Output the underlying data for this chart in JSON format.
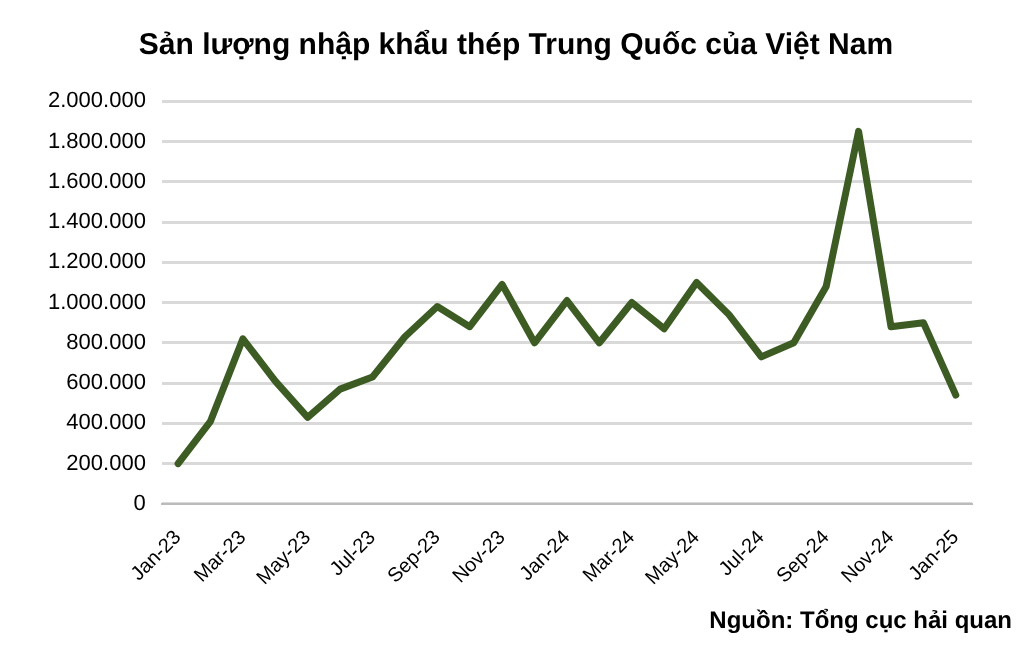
{
  "chart_data": {
    "type": "line",
    "title": "Sản lượng nhập khẩu thép Trung Quốc của Việt Nam",
    "categories": [
      "Jan-23",
      null,
      "Mar-23",
      null,
      "May-23",
      null,
      "Jul-23",
      null,
      "Sep-23",
      null,
      "Nov-23",
      null,
      "Jan-24",
      null,
      "Mar-24",
      null,
      "May-24",
      null,
      "Jul-24",
      null,
      "Sep-24",
      null,
      "Nov-24",
      null,
      "Jan-25"
    ],
    "series": [
      {
        "color": "#3d5c24",
        "values": [
          200000,
          410000,
          820000,
          610000,
          430000,
          570000,
          630000,
          830000,
          980000,
          880000,
          1090000,
          800000,
          1010000,
          800000,
          1000000,
          870000,
          1100000,
          940000,
          730000,
          800000,
          1080000,
          1850000,
          880000,
          900000,
          540000
        ]
      }
    ],
    "ylim": [
      0,
      2000000
    ],
    "yticks": [
      0,
      {
        "value": 200000,
        "label": "200.000"
      },
      {
        "value": 400000,
        "label": "400.000"
      },
      {
        "value": 600000,
        "label": "600.000"
      },
      {
        "value": 800000,
        "label": "800.000"
      },
      {
        "value": 1000000,
        "label": "1.000.000"
      },
      {
        "value": 1200000,
        "label": "1.200.000"
      },
      {
        "value": 1400000,
        "label": "1.400.000"
      },
      {
        "value": 1600000,
        "label": "1.600.000"
      },
      {
        "value": 1800000,
        "label": "1.800.000"
      },
      {
        "value": 2000000,
        "label": "2.000.000"
      }
    ],
    "grid": "y",
    "legend": false,
    "marker": "none",
    "line_style": "solid",
    "annotations": [
      "Nguồn: Tổng cục hải quan"
    ]
  }
}
